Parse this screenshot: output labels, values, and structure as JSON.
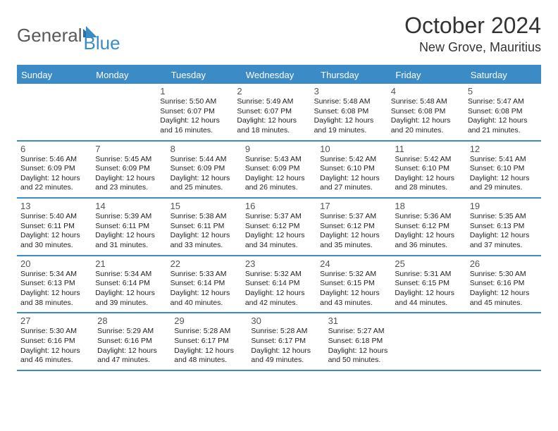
{
  "logo": {
    "word1": "General",
    "word2": "Blue"
  },
  "title": "October 2024",
  "location": "New Grove, Mauritius",
  "colors": {
    "accent": "#3b8bc6",
    "text": "#222222",
    "header_text": "#ffffff",
    "logo_grey": "#58595b"
  },
  "day_headers": [
    "Sunday",
    "Monday",
    "Tuesday",
    "Wednesday",
    "Thursday",
    "Friday",
    "Saturday"
  ],
  "weeks": [
    [
      null,
      null,
      {
        "n": "1",
        "sr": "5:50 AM",
        "ss": "6:07 PM",
        "dl": "12 hours and 16 minutes."
      },
      {
        "n": "2",
        "sr": "5:49 AM",
        "ss": "6:07 PM",
        "dl": "12 hours and 18 minutes."
      },
      {
        "n": "3",
        "sr": "5:48 AM",
        "ss": "6:08 PM",
        "dl": "12 hours and 19 minutes."
      },
      {
        "n": "4",
        "sr": "5:48 AM",
        "ss": "6:08 PM",
        "dl": "12 hours and 20 minutes."
      },
      {
        "n": "5",
        "sr": "5:47 AM",
        "ss": "6:08 PM",
        "dl": "12 hours and 21 minutes."
      }
    ],
    [
      {
        "n": "6",
        "sr": "5:46 AM",
        "ss": "6:09 PM",
        "dl": "12 hours and 22 minutes."
      },
      {
        "n": "7",
        "sr": "5:45 AM",
        "ss": "6:09 PM",
        "dl": "12 hours and 23 minutes."
      },
      {
        "n": "8",
        "sr": "5:44 AM",
        "ss": "6:09 PM",
        "dl": "12 hours and 25 minutes."
      },
      {
        "n": "9",
        "sr": "5:43 AM",
        "ss": "6:09 PM",
        "dl": "12 hours and 26 minutes."
      },
      {
        "n": "10",
        "sr": "5:42 AM",
        "ss": "6:10 PM",
        "dl": "12 hours and 27 minutes."
      },
      {
        "n": "11",
        "sr": "5:42 AM",
        "ss": "6:10 PM",
        "dl": "12 hours and 28 minutes."
      },
      {
        "n": "12",
        "sr": "5:41 AM",
        "ss": "6:10 PM",
        "dl": "12 hours and 29 minutes."
      }
    ],
    [
      {
        "n": "13",
        "sr": "5:40 AM",
        "ss": "6:11 PM",
        "dl": "12 hours and 30 minutes."
      },
      {
        "n": "14",
        "sr": "5:39 AM",
        "ss": "6:11 PM",
        "dl": "12 hours and 31 minutes."
      },
      {
        "n": "15",
        "sr": "5:38 AM",
        "ss": "6:11 PM",
        "dl": "12 hours and 33 minutes."
      },
      {
        "n": "16",
        "sr": "5:37 AM",
        "ss": "6:12 PM",
        "dl": "12 hours and 34 minutes."
      },
      {
        "n": "17",
        "sr": "5:37 AM",
        "ss": "6:12 PM",
        "dl": "12 hours and 35 minutes."
      },
      {
        "n": "18",
        "sr": "5:36 AM",
        "ss": "6:12 PM",
        "dl": "12 hours and 36 minutes."
      },
      {
        "n": "19",
        "sr": "5:35 AM",
        "ss": "6:13 PM",
        "dl": "12 hours and 37 minutes."
      }
    ],
    [
      {
        "n": "20",
        "sr": "5:34 AM",
        "ss": "6:13 PM",
        "dl": "12 hours and 38 minutes."
      },
      {
        "n": "21",
        "sr": "5:34 AM",
        "ss": "6:14 PM",
        "dl": "12 hours and 39 minutes."
      },
      {
        "n": "22",
        "sr": "5:33 AM",
        "ss": "6:14 PM",
        "dl": "12 hours and 40 minutes."
      },
      {
        "n": "23",
        "sr": "5:32 AM",
        "ss": "6:14 PM",
        "dl": "12 hours and 42 minutes."
      },
      {
        "n": "24",
        "sr": "5:32 AM",
        "ss": "6:15 PM",
        "dl": "12 hours and 43 minutes."
      },
      {
        "n": "25",
        "sr": "5:31 AM",
        "ss": "6:15 PM",
        "dl": "12 hours and 44 minutes."
      },
      {
        "n": "26",
        "sr": "5:30 AM",
        "ss": "6:16 PM",
        "dl": "12 hours and 45 minutes."
      }
    ],
    [
      {
        "n": "27",
        "sr": "5:30 AM",
        "ss": "6:16 PM",
        "dl": "12 hours and 46 minutes."
      },
      {
        "n": "28",
        "sr": "5:29 AM",
        "ss": "6:16 PM",
        "dl": "12 hours and 47 minutes."
      },
      {
        "n": "29",
        "sr": "5:28 AM",
        "ss": "6:17 PM",
        "dl": "12 hours and 48 minutes."
      },
      {
        "n": "30",
        "sr": "5:28 AM",
        "ss": "6:17 PM",
        "dl": "12 hours and 49 minutes."
      },
      {
        "n": "31",
        "sr": "5:27 AM",
        "ss": "6:18 PM",
        "dl": "12 hours and 50 minutes."
      },
      null,
      null
    ]
  ],
  "labels": {
    "sunrise": "Sunrise:",
    "sunset": "Sunset:",
    "daylight": "Daylight:"
  }
}
